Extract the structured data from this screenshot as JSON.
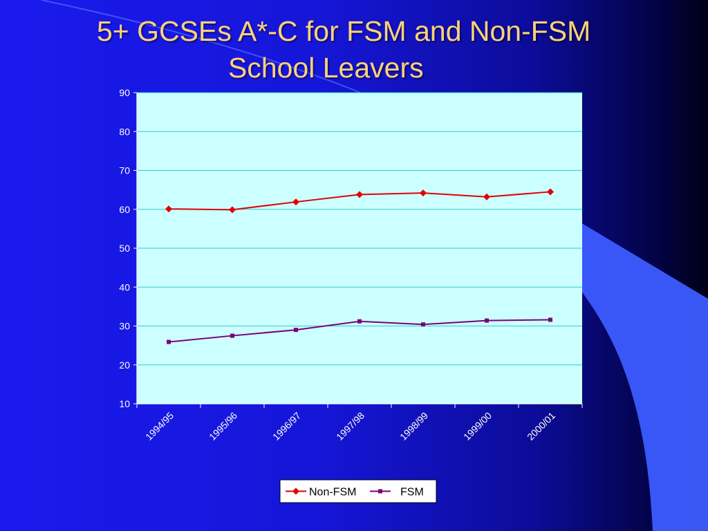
{
  "slide": {
    "title_line_1": "5+ GCSEs A*-C for FSM and Non-FSM",
    "title_line_2": "School Leavers"
  },
  "colors": {
    "plot_background": "#ccffff",
    "gridline": "#33cccc",
    "non_fsm": "#e00000",
    "fsm": "#7a007a",
    "title": "#ffd27a"
  },
  "chart_data": {
    "type": "line",
    "title": "",
    "xlabel": "",
    "ylabel": "",
    "categories": [
      "1994/95",
      "1995/96",
      "1996/97",
      "1997/98",
      "1998/99",
      "1999/00",
      "2000/01"
    ],
    "ylim": [
      10,
      90
    ],
    "yticks": [
      10,
      20,
      30,
      40,
      50,
      60,
      70,
      80,
      90
    ],
    "grid": true,
    "legend_position": "bottom",
    "series": [
      {
        "name": "Non-FSM",
        "marker": "diamond",
        "values": [
          60.1,
          59.9,
          61.9,
          63.8,
          64.2,
          63.2,
          64.5
        ]
      },
      {
        "name": "FSM",
        "marker": "square",
        "values": [
          25.9,
          27.5,
          29.0,
          31.2,
          30.4,
          31.4,
          31.6
        ]
      }
    ]
  }
}
